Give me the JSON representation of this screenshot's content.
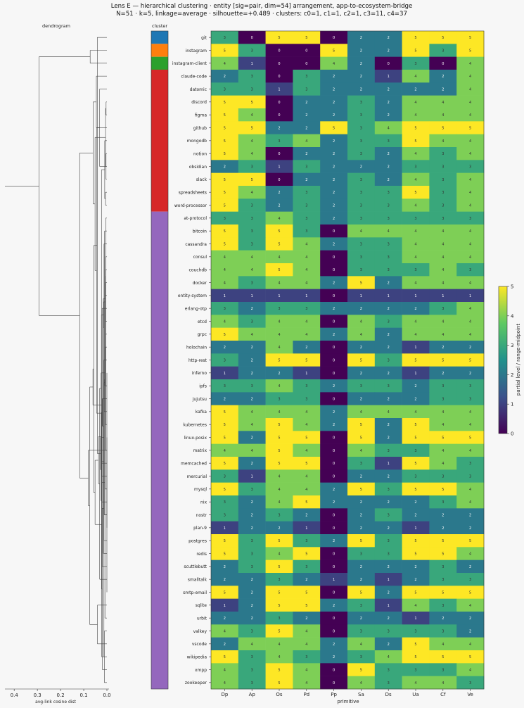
{
  "chart_data": {
    "type": "heatmap",
    "title_line1": "Lens E — hierarchical clustering · entity [sig=pair, dim=54] arrangement, app-to-ecosystem-bridge",
    "title_line2": "N=51 · k=5, linkage=average · silhouette=+0.489 · clusters: c0=1, c1=1, c2=1, c3=11, c4=37",
    "dendrogram_label": "dendrogram",
    "cluster_label": "cluster",
    "xlabel": "primitive",
    "dendro_xlabel": "avg-link cosine dist",
    "dendro_ticks": [
      "0.4",
      "0.3",
      "0.2",
      "0.1",
      "0.0"
    ],
    "colorbar_label": "partial level / range-midpoint",
    "colorbar_ticks": [
      "0",
      "1",
      "2",
      "3",
      "4",
      "5"
    ],
    "clim": [
      0,
      5
    ],
    "columns": [
      "Dp",
      "Ap",
      "Os",
      "Pd",
      "Pp",
      "Sa",
      "Ds",
      "Ua",
      "Cf",
      "Ve"
    ],
    "cluster_colors": {
      "c0": "#1f77b4",
      "c1": "#ff7f0e",
      "c2": "#2ca02c",
      "c3": "#d62728",
      "c4": "#9467bd"
    },
    "rows": [
      {
        "label": "git",
        "cluster": "c0",
        "values": [
          3,
          0,
          5,
          5,
          0,
          2,
          2,
          5,
          5,
          5
        ]
      },
      {
        "label": "instagram",
        "cluster": "c1",
        "values": [
          5,
          3,
          0,
          0,
          5,
          2,
          2,
          5,
          3,
          5
        ]
      },
      {
        "label": "instagram-client",
        "cluster": "c2",
        "values": [
          4,
          1,
          0,
          0,
          4,
          2,
          0,
          3,
          0,
          4
        ]
      },
      {
        "label": "claude-code",
        "cluster": "c3",
        "values": [
          2,
          3,
          0,
          3,
          2,
          2,
          1,
          4,
          2,
          4
        ]
      },
      {
        "label": "datomic",
        "cluster": "c3",
        "values": [
          3,
          3,
          1,
          3,
          2,
          2,
          2,
          2,
          2,
          4
        ]
      },
      {
        "label": "discord",
        "cluster": "c3",
        "values": [
          5,
          5,
          0,
          2,
          2,
          3,
          2,
          4,
          4,
          4
        ]
      },
      {
        "label": "figma",
        "cluster": "c3",
        "values": [
          5,
          4,
          0,
          2,
          2,
          3,
          2,
          4,
          4,
          4
        ]
      },
      {
        "label": "github",
        "cluster": "c3",
        "values": [
          5,
          5,
          2,
          2,
          5,
          3,
          4,
          5,
          5,
          5
        ]
      },
      {
        "label": "mongodb",
        "cluster": "c3",
        "values": [
          5,
          4,
          3,
          4,
          2,
          3,
          3,
          5,
          4,
          4
        ]
      },
      {
        "label": "notion",
        "cluster": "c3",
        "values": [
          5,
          4,
          0,
          2,
          2,
          3,
          2,
          4,
          3,
          4
        ]
      },
      {
        "label": "obsidian",
        "cluster": "c3",
        "values": [
          2,
          3,
          1,
          3,
          2,
          2,
          2,
          3,
          3,
          3
        ]
      },
      {
        "label": "slack",
        "cluster": "c3",
        "values": [
          5,
          5,
          0,
          2,
          2,
          3,
          2,
          4,
          3,
          4
        ]
      },
      {
        "label": "spreadsheets",
        "cluster": "c3",
        "values": [
          5,
          4,
          2,
          3,
          2,
          3,
          3,
          5,
          3,
          4
        ]
      },
      {
        "label": "word-processor",
        "cluster": "c3",
        "values": [
          5,
          3,
          2,
          3,
          2,
          3,
          3,
          4,
          3,
          4
        ]
      },
      {
        "label": "at-protocol",
        "cluster": "c4",
        "values": [
          3,
          3,
          4,
          3,
          2,
          3,
          3,
          3,
          3,
          3
        ]
      },
      {
        "label": "bitcoin",
        "cluster": "c4",
        "values": [
          5,
          3,
          5,
          3,
          0,
          4,
          4,
          4,
          4,
          4
        ]
      },
      {
        "label": "cassandra",
        "cluster": "c4",
        "values": [
          5,
          3,
          5,
          4,
          2,
          3,
          3,
          4,
          4,
          4
        ]
      },
      {
        "label": "consul",
        "cluster": "c4",
        "values": [
          4,
          4,
          4,
          4,
          0,
          3,
          3,
          4,
          4,
          4
        ]
      },
      {
        "label": "couchdb",
        "cluster": "c4",
        "values": [
          4,
          4,
          5,
          4,
          0,
          3,
          3,
          3,
          4,
          3
        ]
      },
      {
        "label": "docker",
        "cluster": "c4",
        "values": [
          4,
          3,
          4,
          4,
          2,
          5,
          2,
          4,
          4,
          4
        ]
      },
      {
        "label": "entity-system",
        "cluster": "c4",
        "values": [
          1,
          1,
          1,
          1,
          0,
          1,
          1,
          1,
          1,
          1
        ]
      },
      {
        "label": "erlang-otp",
        "cluster": "c4",
        "values": [
          3,
          2,
          3,
          3,
          2,
          2,
          2,
          2,
          3,
          4
        ]
      },
      {
        "label": "etcd",
        "cluster": "c4",
        "values": [
          4,
          3,
          4,
          4,
          0,
          4,
          3,
          4,
          4,
          4
        ]
      },
      {
        "label": "grpc",
        "cluster": "c4",
        "values": [
          5,
          4,
          4,
          4,
          2,
          4,
          2,
          4,
          4,
          4
        ]
      },
      {
        "label": "holochain",
        "cluster": "c4",
        "values": [
          2,
          2,
          4,
          2,
          0,
          2,
          2,
          1,
          2,
          2
        ]
      },
      {
        "label": "http-rest",
        "cluster": "c4",
        "values": [
          3,
          2,
          5,
          5,
          0,
          5,
          3,
          5,
          5,
          5
        ]
      },
      {
        "label": "inferno",
        "cluster": "c4",
        "values": [
          1,
          2,
          2,
          1,
          0,
          2,
          2,
          1,
          2,
          2
        ]
      },
      {
        "label": "ipfs",
        "cluster": "c4",
        "values": [
          3,
          3,
          4,
          3,
          2,
          3,
          3,
          2,
          3,
          3
        ]
      },
      {
        "label": "jujutsu",
        "cluster": "c4",
        "values": [
          2,
          2,
          3,
          3,
          0,
          2,
          2,
          2,
          3,
          3
        ]
      },
      {
        "label": "kafka",
        "cluster": "c4",
        "values": [
          5,
          4,
          4,
          4,
          2,
          4,
          4,
          4,
          4,
          4
        ]
      },
      {
        "label": "kubernetes",
        "cluster": "c4",
        "values": [
          5,
          4,
          5,
          4,
          2,
          5,
          2,
          5,
          4,
          4
        ]
      },
      {
        "label": "linux-posix",
        "cluster": "c4",
        "values": [
          5,
          2,
          5,
          5,
          0,
          5,
          2,
          5,
          5,
          5
        ]
      },
      {
        "label": "matrix",
        "cluster": "c4",
        "values": [
          4,
          4,
          5,
          4,
          0,
          4,
          3,
          3,
          4,
          4
        ]
      },
      {
        "label": "memcached",
        "cluster": "c4",
        "values": [
          5,
          2,
          5,
          5,
          0,
          3,
          1,
          5,
          4,
          3
        ]
      },
      {
        "label": "mercurial",
        "cluster": "c4",
        "values": [
          3,
          1,
          4,
          4,
          0,
          2,
          2,
          3,
          3,
          3
        ]
      },
      {
        "label": "mysql",
        "cluster": "c4",
        "values": [
          5,
          3,
          4,
          4,
          2,
          5,
          3,
          5,
          5,
          4
        ]
      },
      {
        "label": "nix",
        "cluster": "c4",
        "values": [
          3,
          2,
          4,
          5,
          2,
          2,
          2,
          2,
          3,
          4
        ]
      },
      {
        "label": "nostr",
        "cluster": "c4",
        "values": [
          3,
          2,
          3,
          2,
          0,
          2,
          3,
          2,
          2,
          2
        ]
      },
      {
        "label": "plan-9",
        "cluster": "c4",
        "values": [
          1,
          2,
          2,
          1,
          0,
          2,
          2,
          1,
          2,
          2
        ]
      },
      {
        "label": "postgres",
        "cluster": "c4",
        "values": [
          5,
          3,
          5,
          3,
          2,
          5,
          3,
          5,
          5,
          5
        ]
      },
      {
        "label": "redis",
        "cluster": "c4",
        "values": [
          5,
          3,
          4,
          5,
          0,
          3,
          3,
          5,
          5,
          4
        ]
      },
      {
        "label": "scuttlebutt",
        "cluster": "c4",
        "values": [
          2,
          3,
          5,
          3,
          0,
          2,
          2,
          2,
          3,
          2
        ]
      },
      {
        "label": "smalltalk",
        "cluster": "c4",
        "values": [
          2,
          2,
          3,
          2,
          1,
          2,
          1,
          2,
          3,
          3
        ]
      },
      {
        "label": "smtp-email",
        "cluster": "c4",
        "values": [
          5,
          2,
          5,
          5,
          0,
          5,
          2,
          5,
          5,
          5
        ]
      },
      {
        "label": "sqlite",
        "cluster": "c4",
        "values": [
          1,
          2,
          5,
          5,
          2,
          3,
          1,
          4,
          3,
          4
        ]
      },
      {
        "label": "urbit",
        "cluster": "c4",
        "values": [
          2,
          2,
          3,
          2,
          0,
          2,
          2,
          1,
          2,
          2
        ]
      },
      {
        "label": "valkey",
        "cluster": "c4",
        "values": [
          4,
          3,
          5,
          4,
          0,
          3,
          3,
          3,
          3,
          2
        ]
      },
      {
        "label": "vscode",
        "cluster": "c4",
        "values": [
          2,
          4,
          4,
          4,
          2,
          4,
          2,
          5,
          4,
          4
        ]
      },
      {
        "label": "wikipedia",
        "cluster": "c4",
        "values": [
          5,
          3,
          4,
          3,
          2,
          3,
          4,
          5,
          5,
          5
        ]
      },
      {
        "label": "xmpp",
        "cluster": "c4",
        "values": [
          4,
          3,
          5,
          4,
          0,
          5,
          3,
          3,
          3,
          4
        ]
      },
      {
        "label": "zookeeper",
        "cluster": "c4",
        "values": [
          4,
          3,
          5,
          4,
          0,
          4,
          3,
          4,
          4,
          3
        ]
      }
    ]
  }
}
